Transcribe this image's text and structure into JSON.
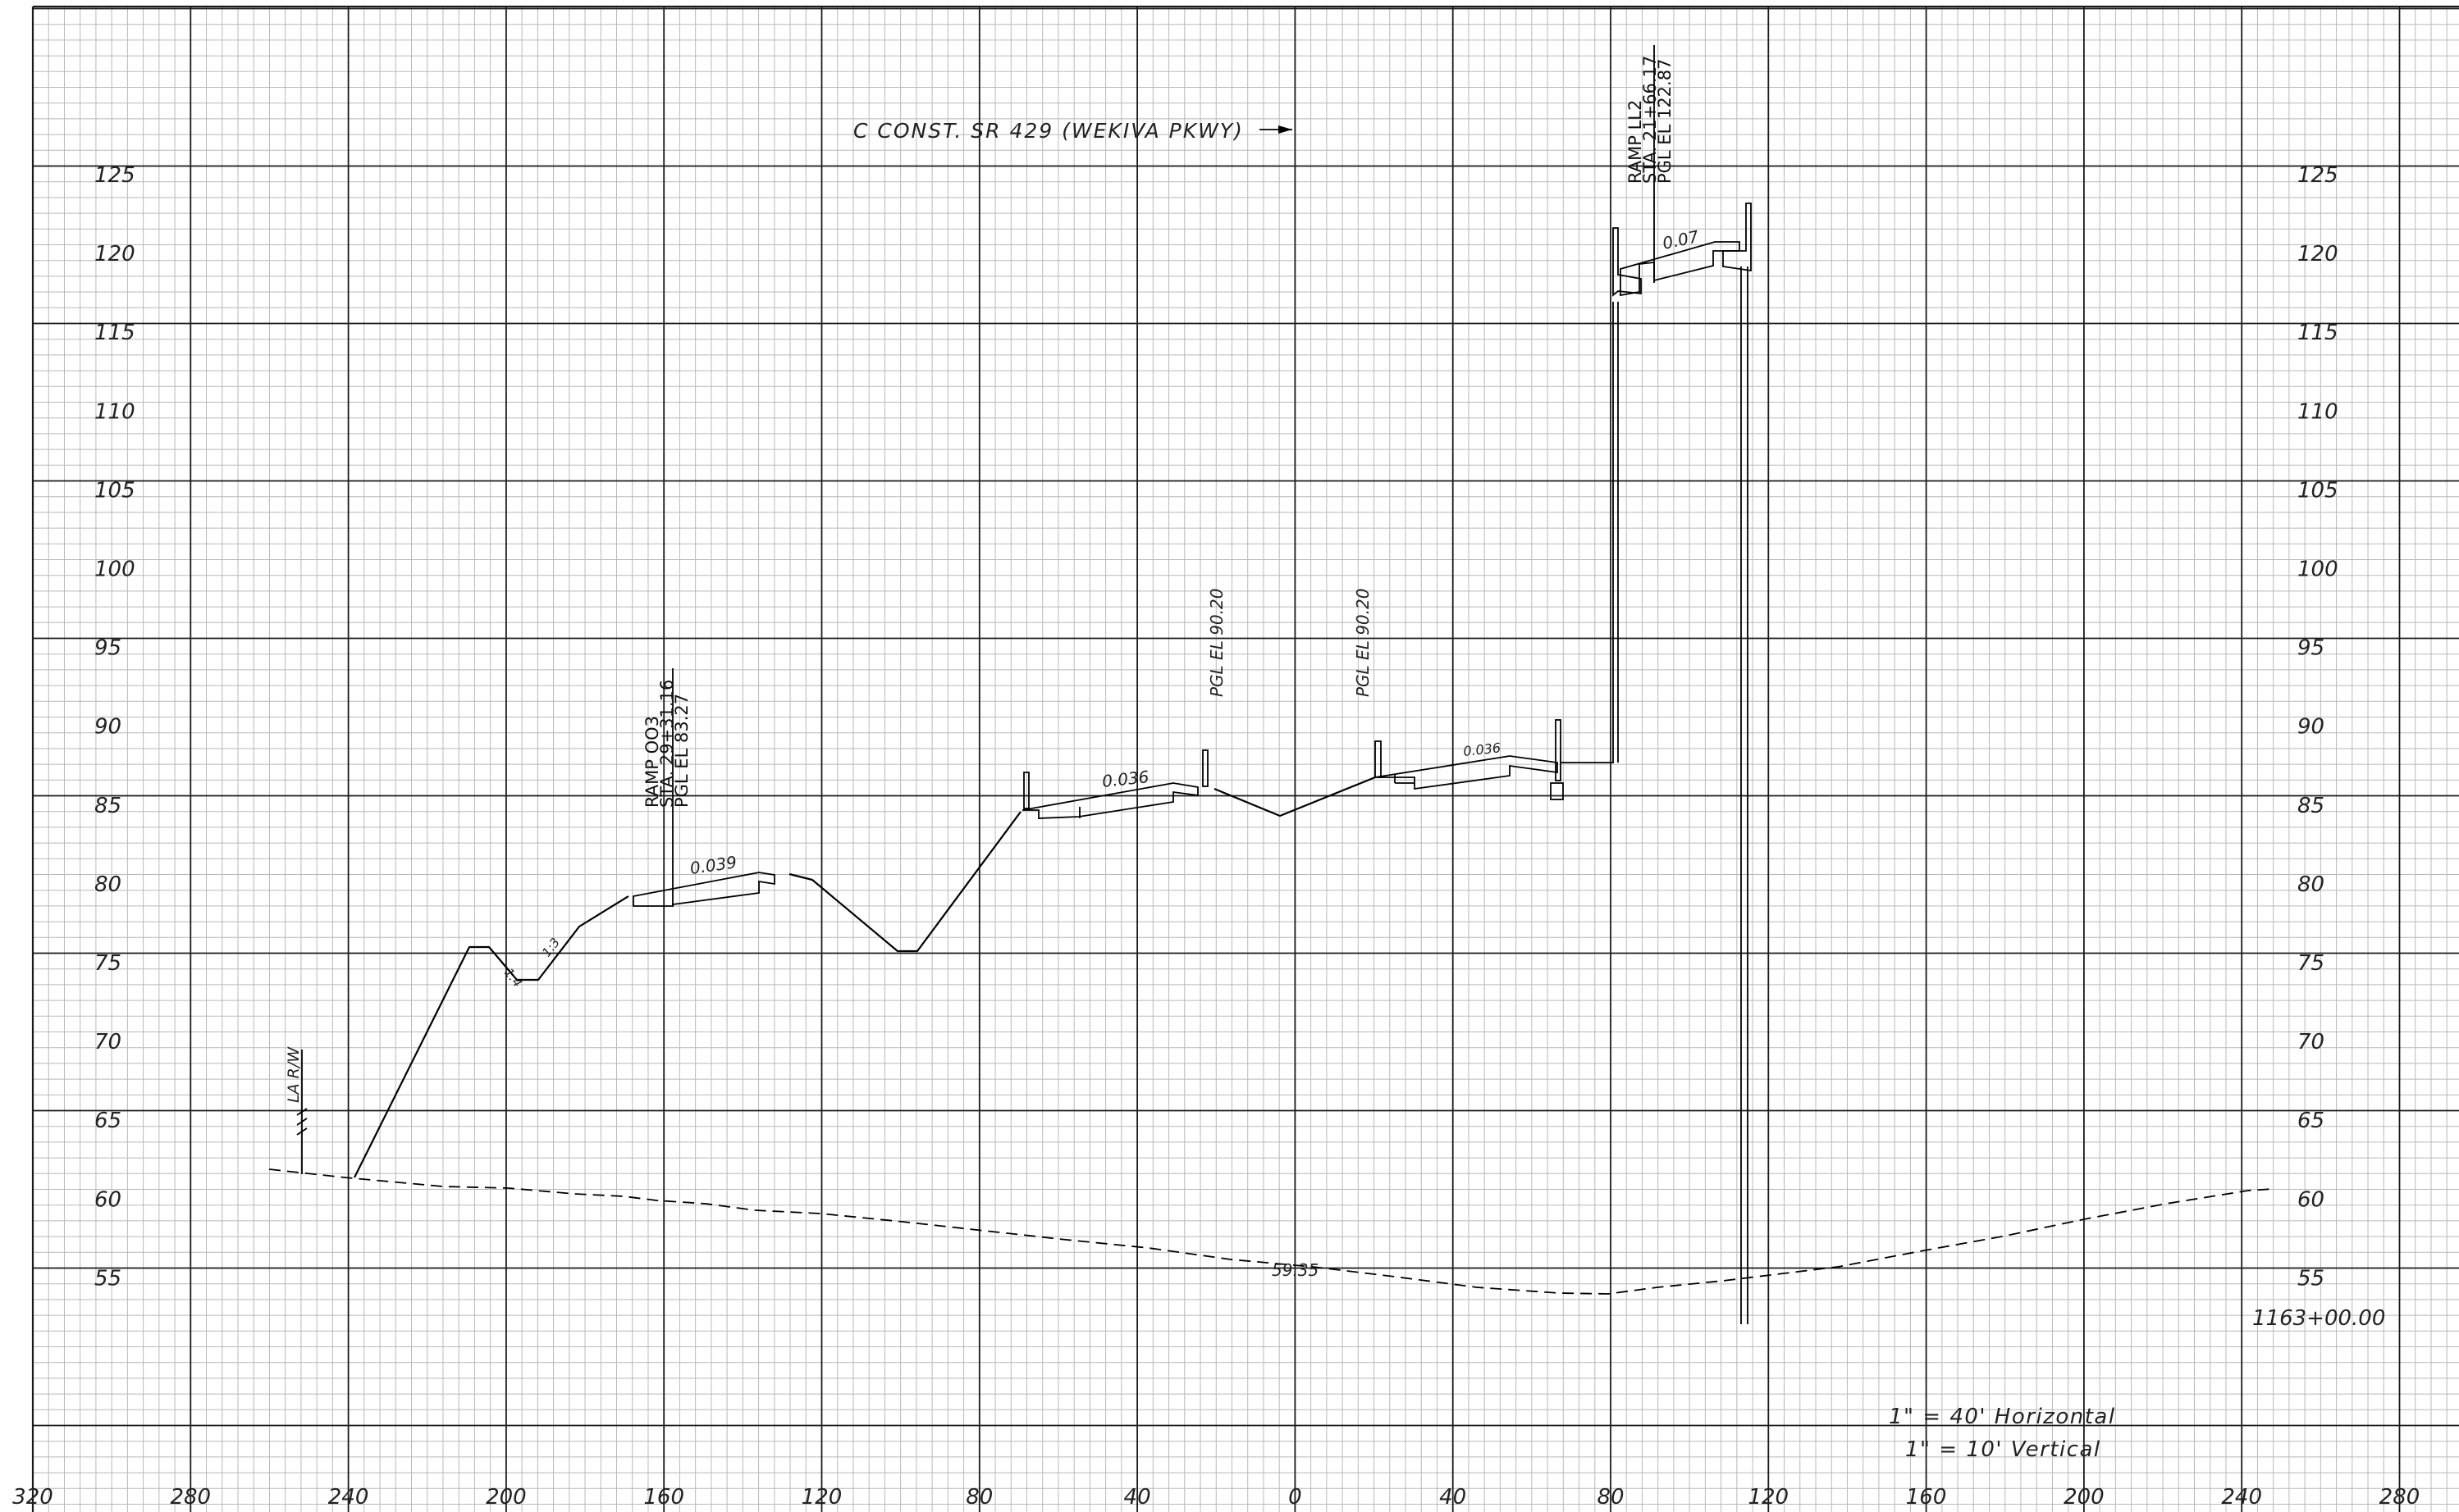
{
  "sheet": {
    "baseline_label": "C CONST. SR 429 (WEKIVA PKWY)",
    "station_label": "1163+00.00",
    "scale_horizontal": "1\" = 40' Horizontal",
    "scale_vertical": "1\" = 10' Vertical"
  },
  "axes": {
    "elevation_ticks": [
      "125",
      "120",
      "115",
      "110",
      "105",
      "100",
      "95",
      "90",
      "85",
      "80",
      "75",
      "70",
      "65",
      "60",
      "55"
    ],
    "offset_ticks": [
      "320",
      "280",
      "240",
      "200",
      "160",
      "120",
      "80",
      "40",
      "0",
      "40",
      "80",
      "120",
      "160",
      "200",
      "240",
      "280"
    ]
  },
  "annotations": {
    "ramp_oo3": [
      "RAMP OO3",
      "STA. 29+31.16",
      "PGL EL 83.27"
    ],
    "ramp_ll2": [
      "RAMP LL2",
      "STA. 21+66.17",
      "PGL EL 122.87"
    ],
    "pgl_left": "PGL EL  90.20",
    "pgl_right": "PGL EL  90.20",
    "right_of_way": "LA R/W",
    "slope_ramp_oo3": "0.039",
    "slope_mainline_left": "0.036",
    "slope_mainline_right": "0.036",
    "slope_ramp_ll2": "0.07",
    "side_slope_a": "1:4",
    "side_slope_b": "1:3",
    "existing_ground_elev": "59.35"
  },
  "colors": {
    "grid_minor": "#b9b9b9",
    "grid_major": "#1a1a1a",
    "line": "#000000"
  }
}
